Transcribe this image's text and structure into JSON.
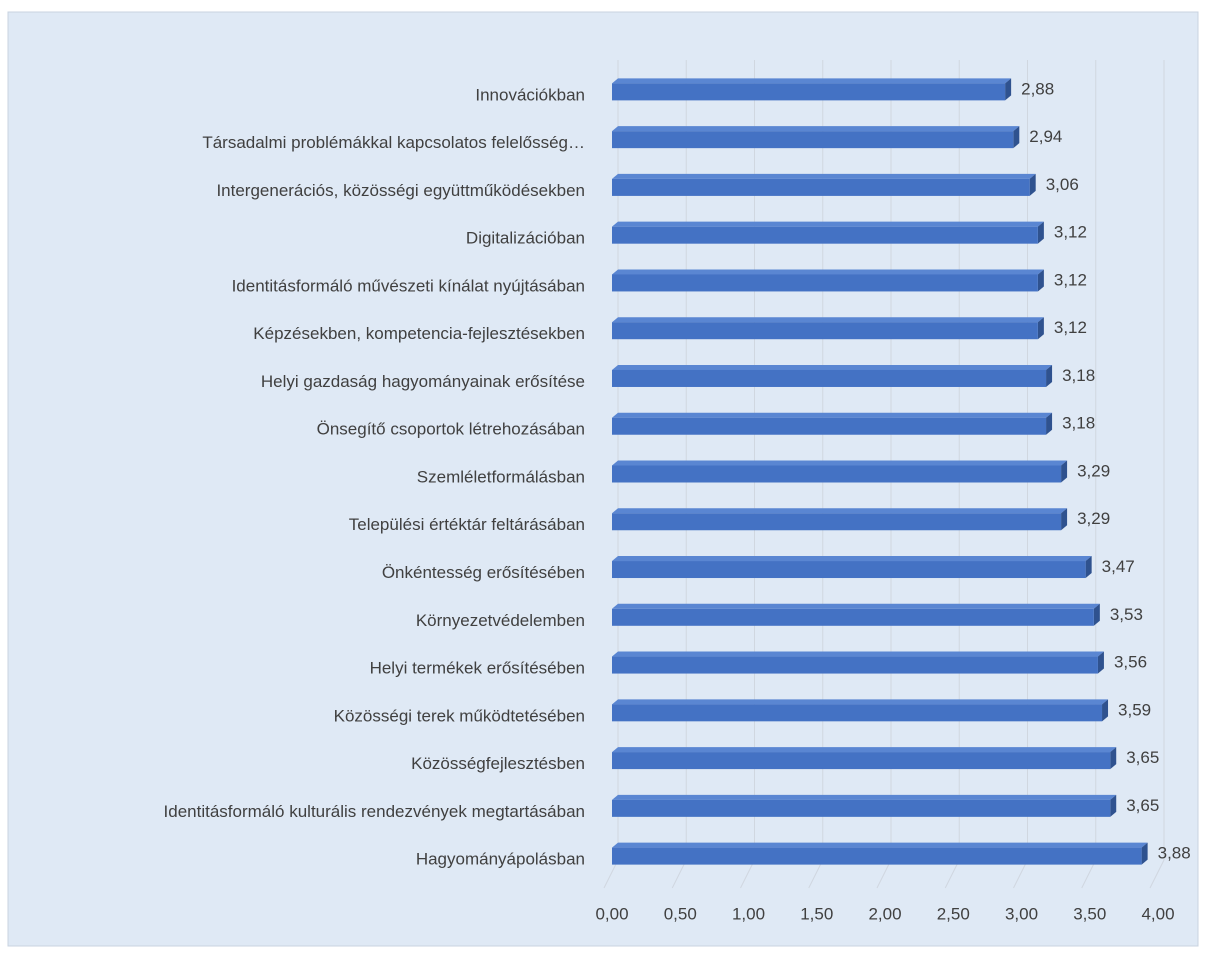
{
  "chart_data": {
    "type": "bar",
    "orientation": "horizontal",
    "categories": [
      "Innovációkban",
      "Társadalmi problémákkal kapcsolatos felelősség…",
      "Intergenerációs, közösségi együttműködésekben",
      "Digitalizációban",
      "Identitásformáló művészeti kínálat nyújtásában",
      "Képzésekben, kompetencia-fejlesztésekben",
      "Helyi gazdaság hagyományainak erősítése",
      "Önsegítő csoportok létrehozásában",
      "Szemléletformálásban",
      "Települési értéktár feltárásában",
      "Önkéntesség erősítésében",
      "Környezetvédelemben",
      "Helyi termékek erősítésében",
      "Közösségi terek működtetésében",
      "Közösségfejlesztésben",
      "Identitásformáló kulturális rendezvények megtartásában",
      "Hagyományápolásban"
    ],
    "values": [
      2.88,
      2.94,
      3.06,
      3.12,
      3.12,
      3.12,
      3.18,
      3.18,
      3.29,
      3.29,
      3.47,
      3.53,
      3.56,
      3.59,
      3.65,
      3.65,
      3.88
    ],
    "value_labels": [
      "2,88",
      "2,94",
      "3,06",
      "3,12",
      "3,12",
      "3,12",
      "3,18",
      "3,18",
      "3,29",
      "3,29",
      "3,47",
      "3,53",
      "3,56",
      "3,59",
      "3,65",
      "3,65",
      "3,88"
    ],
    "color": "#4472c4",
    "xlim": [
      0,
      4
    ],
    "xticks": [
      {
        "value": 0,
        "label": "0,00"
      },
      {
        "value": 0.5,
        "label": "0,50"
      },
      {
        "value": 1,
        "label": "1,00"
      },
      {
        "value": 1.5,
        "label": "1,50"
      },
      {
        "value": 2,
        "label": "2,00"
      },
      {
        "value": 2.5,
        "label": "2,50"
      },
      {
        "value": 3,
        "label": "3,00"
      },
      {
        "value": 3.5,
        "label": "3,50"
      },
      {
        "value": 4,
        "label": "4,00"
      }
    ],
    "grid": true
  }
}
